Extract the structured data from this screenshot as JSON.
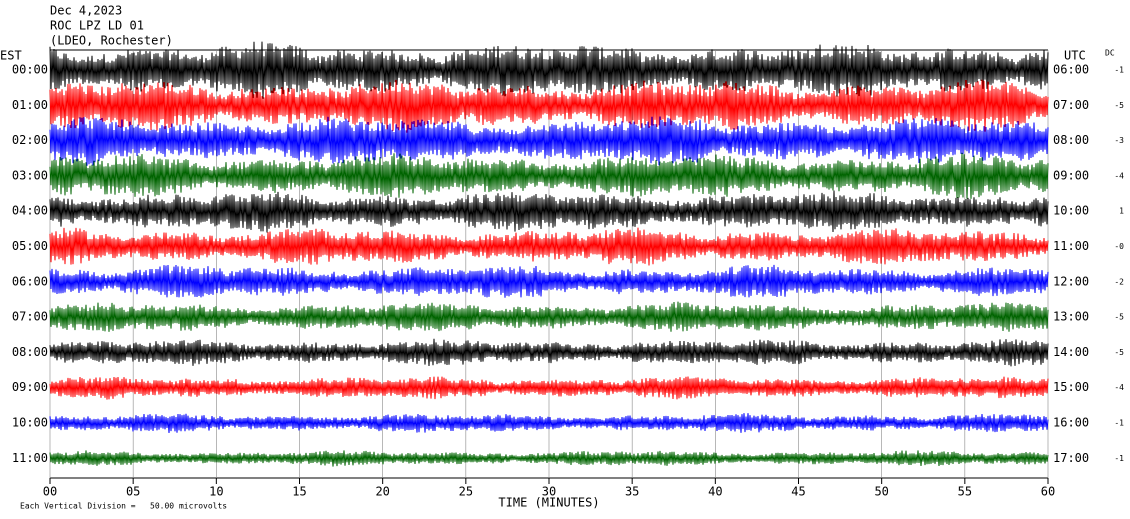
{
  "chart_data": {
    "type": "helicorder",
    "title_lines": [
      "Dec 4,2023",
      "ROC LPZ LD 01",
      "(LDEO, Rochester)"
    ],
    "left_axis_label": "EST",
    "right_axis_label": "UTC",
    "dc_label": "DC",
    "xlabel": "TIME (MINUTES)",
    "footnote": "Each Vertical Division =   50.00 microvolts",
    "xlim": [
      0,
      60
    ],
    "xticks": [
      {
        "value": 0,
        "label": "00"
      },
      {
        "value": 5,
        "label": "05"
      },
      10,
      15,
      20,
      25,
      30,
      35,
      40,
      45,
      50,
      55,
      60
    ],
    "grid": true,
    "rows": [
      {
        "est": "00:00",
        "utc": "06:00",
        "dc": "-1",
        "color": "#000000"
      },
      {
        "est": "01:00",
        "utc": "07:00",
        "dc": "-5",
        "color": "#ff0000"
      },
      {
        "est": "02:00",
        "utc": "08:00",
        "dc": "-3",
        "color": "#0000ff"
      },
      {
        "est": "03:00",
        "utc": "09:00",
        "dc": "-4",
        "color": "#006400"
      },
      {
        "est": "04:00",
        "utc": "10:00",
        "dc": "1",
        "color": "#000000"
      },
      {
        "est": "05:00",
        "utc": "11:00",
        "dc": "-0",
        "color": "#ff0000"
      },
      {
        "est": "06:00",
        "utc": "12:00",
        "dc": "-2",
        "color": "#0000ff"
      },
      {
        "est": "07:00",
        "utc": "13:00",
        "dc": "-5",
        "color": "#006400"
      },
      {
        "est": "08:00",
        "utc": "14:00",
        "dc": "-5",
        "color": "#000000"
      },
      {
        "est": "09:00",
        "utc": "15:00",
        "dc": "-4",
        "color": "#ff0000"
      },
      {
        "est": "10:00",
        "utc": "16:00",
        "dc": "-1",
        "color": "#0000ff"
      },
      {
        "est": "11:00",
        "utc": "17:00",
        "dc": "-1",
        "color": "#006400"
      }
    ]
  }
}
